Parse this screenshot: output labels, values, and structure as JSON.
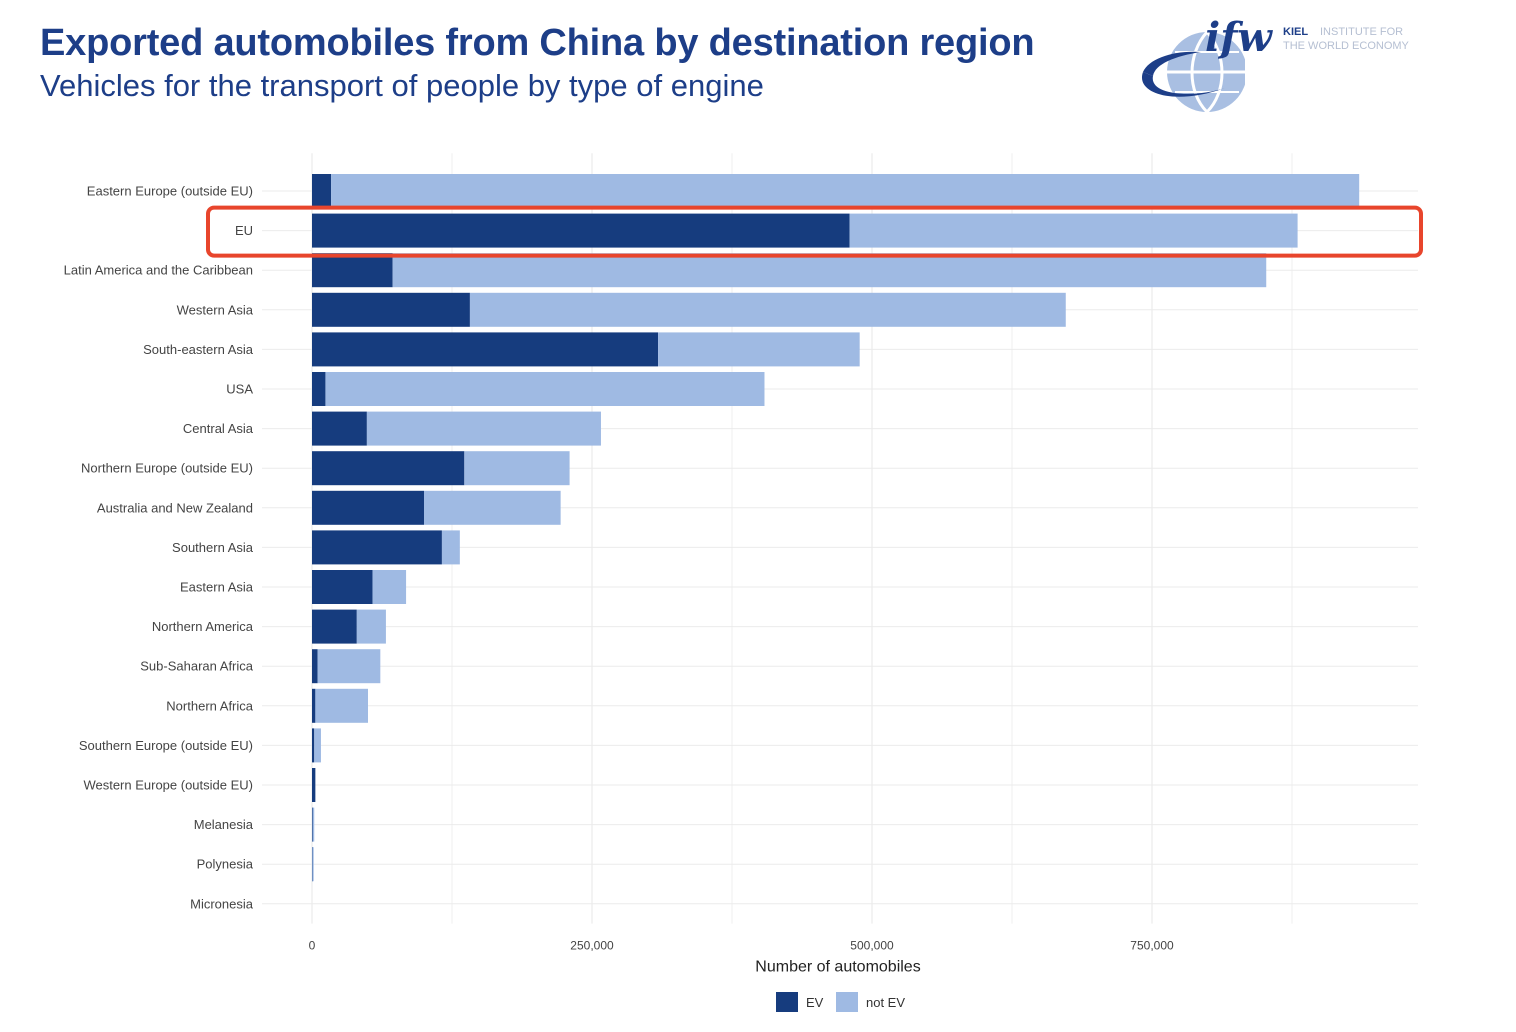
{
  "header": {
    "title": "Exported automobiles from China by destination region",
    "subtitle": "Vehicles for the transport of people by type of engine"
  },
  "logo": {
    "mark": "ifw",
    "line1_bold": "KIEL",
    "line1_rest": "INSTITUTE FOR",
    "line2": "THE WORLD ECONOMY"
  },
  "colors": {
    "ev": "#163c7e",
    "not_ev": "#9fbae3",
    "highlight": "#e8452c",
    "grid": "#ebebeb",
    "title": "#1d3e88"
  },
  "chart_data": {
    "type": "bar",
    "orientation": "horizontal",
    "stacked": true,
    "title": "Exported automobiles from China by destination region",
    "subtitle": "Vehicles for the transport of people by type of engine",
    "xlabel": "Number of automobiles",
    "ylabel": "",
    "xlim": [
      0,
      980000
    ],
    "x_ticks": [
      0,
      250000,
      500000,
      750000
    ],
    "x_tick_labels": [
      "0",
      "250,000",
      "500,000",
      "750,000"
    ],
    "categories": [
      "Eastern Europe (outside EU)",
      "EU",
      "Latin America and the Caribbean",
      "Western Asia",
      "South-eastern Asia",
      "USA",
      "Central Asia",
      "Northern Europe (outside EU)",
      "Australia and New Zealand",
      "Southern Asia",
      "Eastern Asia",
      "Northern America",
      "Sub-Saharan Africa",
      "Northern Africa",
      "Southern Europe (outside EU)",
      "Western Europe (outside EU)",
      "Melanesia",
      "Polynesia",
      "Micronesia"
    ],
    "series": [
      {
        "name": "EV",
        "values": [
          17000,
          480000,
          72000,
          141000,
          309000,
          12000,
          49000,
          136000,
          100000,
          116000,
          54000,
          40000,
          5000,
          3000,
          2000,
          3000,
          500,
          300,
          0
        ]
      },
      {
        "name": "not EV",
        "values": [
          918000,
          400000,
          780000,
          532000,
          180000,
          392000,
          209000,
          94000,
          122000,
          16000,
          30000,
          26000,
          56000,
          47000,
          6000,
          0,
          1500,
          1200,
          0
        ]
      }
    ],
    "highlighted_category": "EU",
    "legend": {
      "position": "bottom",
      "entries": [
        "EV",
        "not EV"
      ]
    }
  }
}
